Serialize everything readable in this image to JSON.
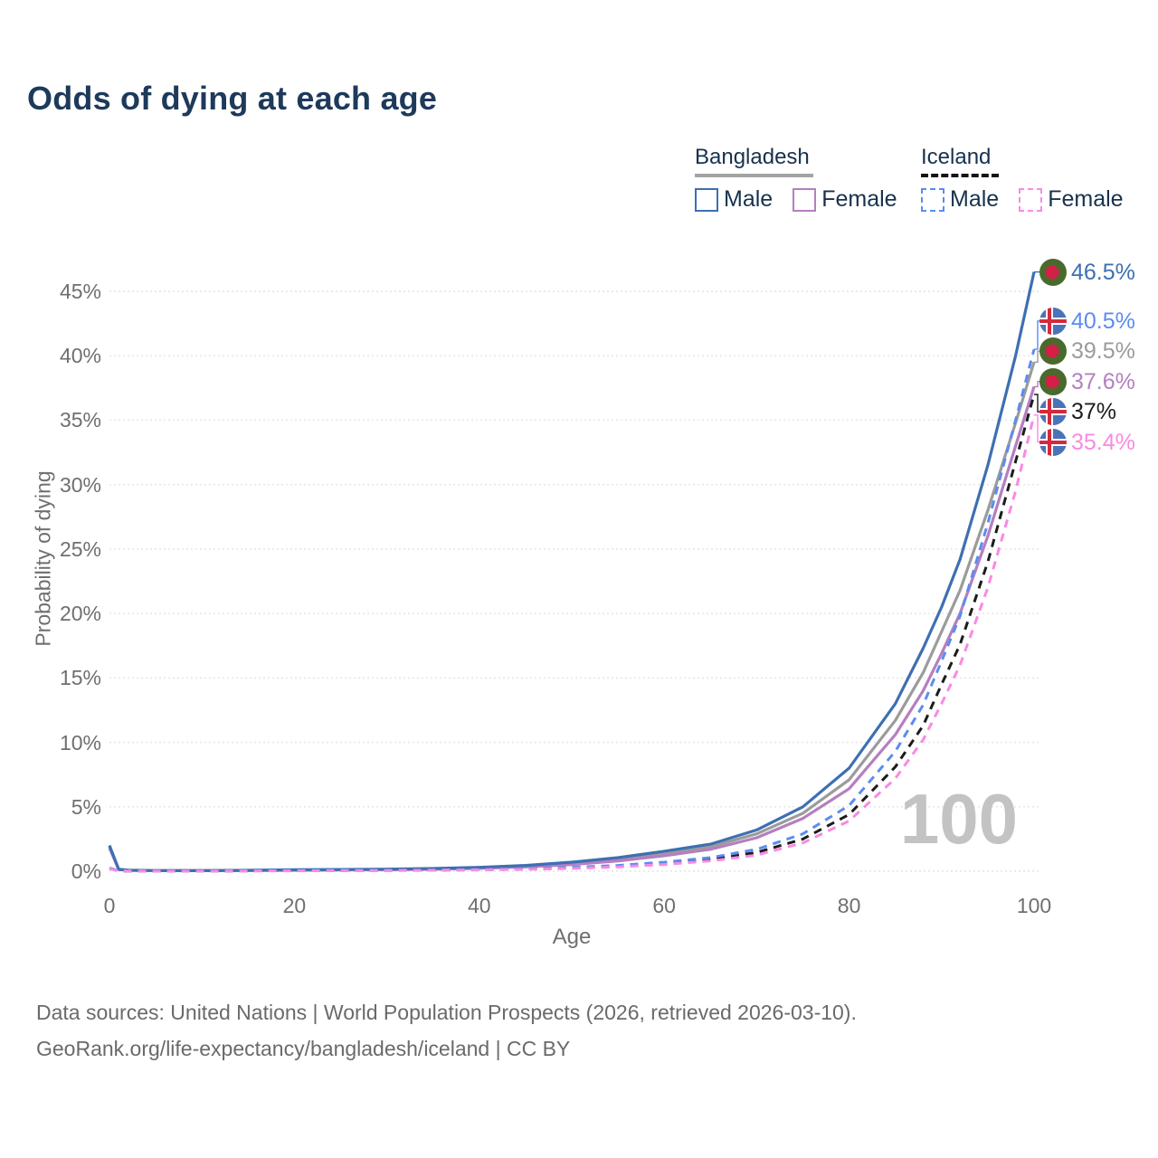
{
  "title": "Odds of dying at each age",
  "legend": {
    "groups": [
      {
        "label": "Bangladesh",
        "underline": "solid",
        "underline_color": "#a3a3a3",
        "items": [
          {
            "label": "Male",
            "color": "#3e6fb2",
            "dashed": false
          },
          {
            "label": "Female",
            "color": "#b57fc0",
            "dashed": false
          }
        ]
      },
      {
        "label": "Iceland",
        "underline": "dashed",
        "underline_color": "#141414",
        "items": [
          {
            "label": "Male",
            "color": "#5b8cf0",
            "dashed": true
          },
          {
            "label": "Female",
            "color": "#f98ae2",
            "dashed": true
          }
        ]
      }
    ]
  },
  "chart_data": {
    "type": "line",
    "title": "Odds of dying at each age",
    "xlabel": "Age",
    "ylabel": "Probability of dying",
    "xlim": [
      0,
      100
    ],
    "ylim": [
      0,
      47
    ],
    "x_ticks": [
      0,
      20,
      40,
      60,
      80,
      100
    ],
    "y_ticks_percent": [
      0,
      5,
      10,
      15,
      20,
      25,
      30,
      35,
      40,
      45
    ],
    "y_tick_labels": [
      "0%",
      "5%",
      "10%",
      "15%",
      "20%",
      "25%",
      "30%",
      "35%",
      "40%",
      "45%"
    ],
    "grid": "horizontal-dotted",
    "legend_position": "top-right",
    "watermark": "100",
    "x": [
      0,
      1,
      2,
      5,
      10,
      15,
      20,
      25,
      30,
      35,
      40,
      45,
      50,
      55,
      60,
      65,
      70,
      75,
      80,
      85,
      88,
      90,
      92,
      95,
      98,
      100
    ],
    "series": [
      {
        "name": "Bangladesh Male",
        "flag": "bd",
        "color": "#3e6fb2",
        "dashed": false,
        "end_label": "46.5%",
        "values": [
          2.0,
          0.15,
          0.08,
          0.05,
          0.04,
          0.07,
          0.11,
          0.13,
          0.16,
          0.21,
          0.3,
          0.45,
          0.7,
          1.05,
          1.55,
          2.1,
          3.2,
          5.0,
          8.0,
          13.0,
          17.3,
          20.5,
          24.2,
          31.5,
          40.0,
          46.5
        ]
      },
      {
        "name": "Iceland Male",
        "flag": "is",
        "color": "#5b8cf0",
        "dashed": true,
        "end_label": "40.5%",
        "values": [
          0.25,
          0.03,
          0.02,
          0.01,
          0.01,
          0.03,
          0.06,
          0.07,
          0.08,
          0.1,
          0.13,
          0.2,
          0.3,
          0.45,
          0.7,
          1.05,
          1.7,
          2.9,
          5.1,
          9.3,
          12.9,
          16.3,
          19.8,
          27.0,
          35.0,
          40.5
        ]
      },
      {
        "name": "Bangladesh",
        "flag": "bd",
        "color": "#9b9b9b",
        "dashed": false,
        "end_label": "39.5%",
        "values": [
          1.9,
          0.14,
          0.075,
          0.05,
          0.04,
          0.06,
          0.09,
          0.11,
          0.13,
          0.18,
          0.26,
          0.39,
          0.61,
          0.92,
          1.37,
          1.9,
          2.9,
          4.5,
          7.1,
          11.7,
          15.4,
          18.6,
          21.8,
          28.0,
          34.8,
          39.5
        ]
      },
      {
        "name": "Bangladesh Female",
        "flag": "bd",
        "color": "#b57fc0",
        "dashed": false,
        "end_label": "37.6%",
        "values": [
          1.8,
          0.13,
          0.07,
          0.05,
          0.04,
          0.05,
          0.07,
          0.09,
          0.11,
          0.15,
          0.22,
          0.33,
          0.52,
          0.8,
          1.2,
          1.7,
          2.6,
          4.1,
          6.4,
          10.6,
          14.0,
          16.9,
          20.0,
          26.0,
          33.0,
          37.6
        ]
      },
      {
        "name": "Iceland",
        "flag": "is",
        "color": "#1c1c1c",
        "dashed": true,
        "end_label": "37%",
        "values": [
          0.22,
          0.025,
          0.015,
          0.01,
          0.01,
          0.025,
          0.045,
          0.055,
          0.065,
          0.085,
          0.115,
          0.17,
          0.26,
          0.39,
          0.6,
          0.92,
          1.45,
          2.5,
          4.4,
          8.1,
          11.3,
          14.5,
          17.6,
          24.0,
          31.8,
          37.0
        ]
      },
      {
        "name": "Iceland Female",
        "flag": "is",
        "color": "#f98ae2",
        "dashed": true,
        "end_label": "35.4%",
        "values": [
          0.2,
          0.02,
          0.012,
          0.01,
          0.01,
          0.02,
          0.03,
          0.04,
          0.05,
          0.07,
          0.1,
          0.15,
          0.22,
          0.34,
          0.52,
          0.8,
          1.25,
          2.2,
          3.9,
          7.2,
          10.2,
          13.0,
          16.0,
          22.0,
          29.5,
          35.4
        ]
      }
    ],
    "flag_colors": {
      "bd_green": "#4a6a2d",
      "bd_red": "#d41f46",
      "is_blue": "#4a73b8",
      "is_white": "#ffffff",
      "is_red": "#d5293d"
    }
  },
  "footer": {
    "line1": "Data sources: United Nations | World Population Prospects (2026, retrieved 2026-03-10).",
    "line2": "GeoRank.org/life-expectancy/bangladesh/iceland | CC BY"
  }
}
